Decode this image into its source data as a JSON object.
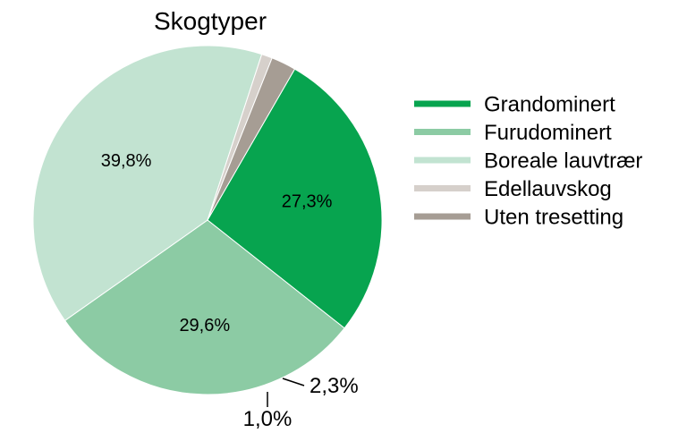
{
  "chart_data": {
    "type": "pie",
    "title": "Skogtyper",
    "slices": [
      {
        "name": "Grandominert",
        "value": 27.3,
        "label": "27,3%",
        "color": "#07a44f"
      },
      {
        "name": "Furudominert",
        "value": 29.6,
        "label": "29,6%",
        "color": "#8ccba4"
      },
      {
        "name": "Boreale lauvtrær",
        "value": 39.8,
        "label": "39,8%",
        "color": "#c2e3d1"
      },
      {
        "name": "Edellauvskog",
        "value": 1.0,
        "label": "1,0%",
        "color": "#d6d0cb"
      },
      {
        "name": "Uten tresetting",
        "value": 2.3,
        "label": "2,3%",
        "color": "#a69d94"
      }
    ],
    "start_angle_deg": 30,
    "direction": "clockwise",
    "legend_position": "right"
  }
}
